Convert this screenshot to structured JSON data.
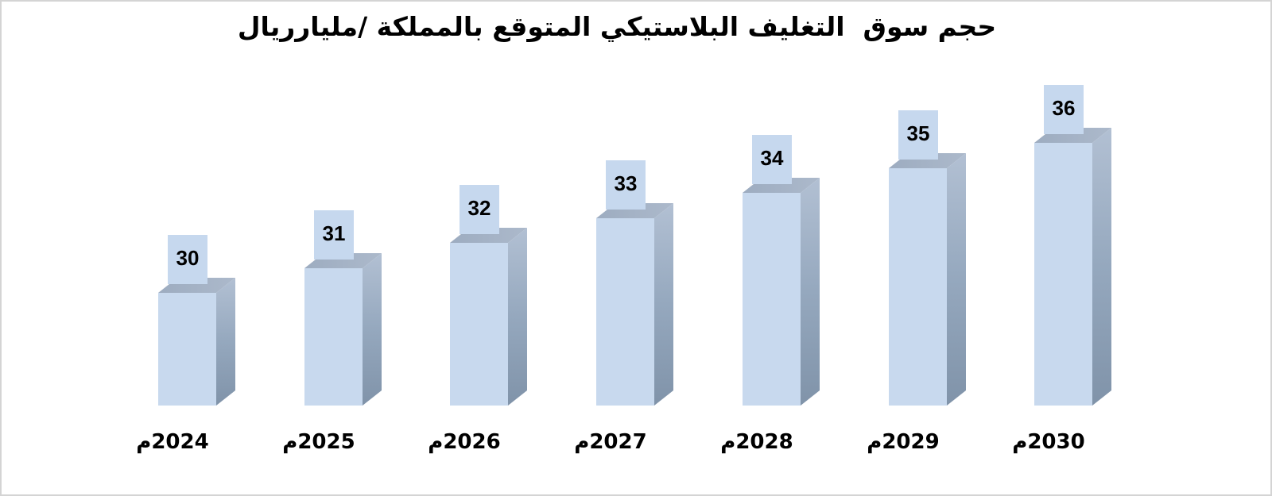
{
  "title": "حجم سوق  التغليف البلاستيكي المتوقع بالمملكة /مليارريال",
  "chart_data": {
    "type": "bar",
    "style": "3d-column",
    "title": "حجم سوق  التغليف البلاستيكي المتوقع بالمملكة /مليارريال",
    "categories": [
      "2024م",
      "2025م",
      "2026م",
      "2027م",
      "2028م",
      "2029م",
      "2030م"
    ],
    "values": [
      30,
      31,
      32,
      33,
      34,
      35,
      36
    ],
    "xlabel": "",
    "ylabel": "",
    "ylim": [
      25.5,
      37
    ],
    "grid": false,
    "legend": "none",
    "rtl": true,
    "data_labels_shown": true
  },
  "colors": {
    "background": "#FFFFFF",
    "page_border": "#D4D4D4",
    "text": "#000000",
    "bar_front": "#C8D9EE",
    "bar_side_top": "#B2C0D3",
    "bar_side_bottom": "#8093A9",
    "bar_top": "#ACB9CB",
    "label_box": "#C6D8EE"
  }
}
